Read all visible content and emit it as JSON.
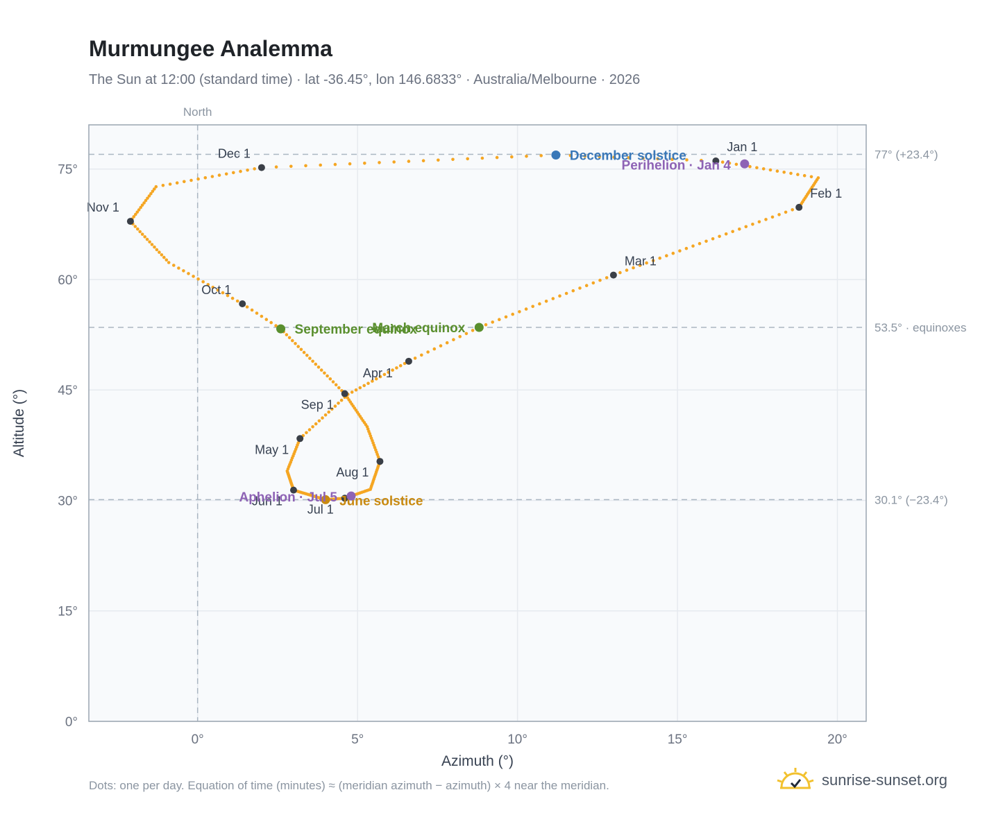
{
  "title": "Murmungee Analemma",
  "subtitle": "The Sun at 12:00 (standard time) · lat -36.45°, lon 146.6833° · Australia/Melbourne · 2026",
  "footnote": "Dots: one per day. Equation of time (minutes) ≈ (meridian azimuth − azimuth) × 4 near the meridian.",
  "brand": {
    "name": "sunrise-sunset.org",
    "icon": "sun-check-icon"
  },
  "colors": {
    "curve": "#f5a623",
    "month_marker": "#3a3f47",
    "equinox": "#5a8f2e",
    "december_solstice": "#3a78b8",
    "june_solstice": "#c98a10",
    "apsis": "#8e63b5",
    "plot_bg": "#f8fafc",
    "grid": "#e6eaef",
    "reference": "#aab6c2"
  },
  "chart_data": {
    "type": "scatter",
    "xlabel": "Azimuth (°)",
    "ylabel": "Altitude (°)",
    "xlim": [
      -3.4,
      20.9
    ],
    "ylim": [
      0,
      81
    ],
    "x_ticks": [
      {
        "v": 0,
        "label": "0°"
      },
      {
        "v": 5,
        "label": "5°"
      },
      {
        "v": 10,
        "label": "10°"
      },
      {
        "v": 15,
        "label": "15°"
      },
      {
        "v": 20,
        "label": "20°"
      }
    ],
    "y_ticks": [
      {
        "v": 0,
        "label": "0°"
      },
      {
        "v": 15,
        "label": "15°"
      },
      {
        "v": 30,
        "label": "30°"
      },
      {
        "v": 45,
        "label": "45°"
      },
      {
        "v": 60,
        "label": "60°"
      },
      {
        "v": 75,
        "label": "75°"
      }
    ],
    "grid": true,
    "north_line": {
      "azimuth": 0,
      "label": "North"
    },
    "reference_lines": [
      {
        "altitude": 77.0,
        "label": "77° (+23.4°)"
      },
      {
        "altitude": 53.5,
        "label": "53.5° · equinoxes"
      },
      {
        "altitude": 30.1,
        "label": "30.1° (−23.4°)"
      }
    ],
    "path_points": [
      {
        "day": 1,
        "az": 16.2,
        "alt": 76.1
      },
      {
        "day": 16,
        "az": 19.4,
        "alt": 73.8
      },
      {
        "day": 32,
        "az": 18.8,
        "alt": 69.8
      },
      {
        "day": 60,
        "az": 13.0,
        "alt": 60.6
      },
      {
        "day": 80,
        "az": 8.8,
        "alt": 53.5
      },
      {
        "day": 91,
        "az": 6.6,
        "alt": 48.9
      },
      {
        "day": 106,
        "az": 4.7,
        "alt": 44.4
      },
      {
        "day": 121,
        "az": 3.2,
        "alt": 38.4
      },
      {
        "day": 136,
        "az": 2.8,
        "alt": 34.0
      },
      {
        "day": 152,
        "az": 3.0,
        "alt": 31.4
      },
      {
        "day": 172,
        "az": 4.0,
        "alt": 30.1
      },
      {
        "day": 182,
        "az": 4.6,
        "alt": 30.3
      },
      {
        "day": 197,
        "az": 5.4,
        "alt": 31.5
      },
      {
        "day": 213,
        "az": 5.7,
        "alt": 35.3
      },
      {
        "day": 228,
        "az": 5.3,
        "alt": 40.0
      },
      {
        "day": 244,
        "az": 4.6,
        "alt": 44.5
      },
      {
        "day": 266,
        "az": 2.6,
        "alt": 53.3
      },
      {
        "day": 274,
        "az": 1.4,
        "alt": 56.7
      },
      {
        "day": 289,
        "az": -0.9,
        "alt": 62.3
      },
      {
        "day": 305,
        "az": -2.1,
        "alt": 67.9
      },
      {
        "day": 320,
        "az": -1.3,
        "alt": 72.6
      },
      {
        "day": 335,
        "az": 2.0,
        "alt": 75.2
      },
      {
        "day": 355,
        "az": 11.2,
        "alt": 76.9
      },
      {
        "day": 366,
        "az": 16.2,
        "alt": 76.1
      }
    ],
    "months": [
      {
        "label": "Jan 1",
        "az": 16.2,
        "alt": 76.1,
        "dx": 16,
        "dy": -14,
        "anchor": "start"
      },
      {
        "label": "Feb 1",
        "az": 18.8,
        "alt": 69.8,
        "dx": 16,
        "dy": -14,
        "anchor": "start"
      },
      {
        "label": "Mar 1",
        "az": 13.0,
        "alt": 60.6,
        "dx": 16,
        "dy": -14,
        "anchor": "start"
      },
      {
        "label": "Apr 1",
        "az": 6.6,
        "alt": 48.9,
        "dx": -66,
        "dy": 23,
        "anchor": "start"
      },
      {
        "label": "May 1",
        "az": 3.2,
        "alt": 38.4,
        "dx": -16,
        "dy": 22,
        "anchor": "end"
      },
      {
        "label": "Jun 1",
        "az": 3.0,
        "alt": 31.4,
        "dx": -16,
        "dy": 22,
        "anchor": "end"
      },
      {
        "label": "Jul 1",
        "az": 4.6,
        "alt": 30.3,
        "dx": -16,
        "dy": 22,
        "anchor": "end"
      },
      {
        "label": "Aug 1",
        "az": 5.7,
        "alt": 35.3,
        "dx": -16,
        "dy": 22,
        "anchor": "end"
      },
      {
        "label": "Sep 1",
        "az": 4.6,
        "alt": 44.5,
        "dx": -16,
        "dy": 22,
        "anchor": "end"
      },
      {
        "label": "Oct 1",
        "az": 1.4,
        "alt": 56.7,
        "dx": -16,
        "dy": -14,
        "anchor": "end"
      },
      {
        "label": "Nov 1",
        "az": -2.1,
        "alt": 67.9,
        "dx": -16,
        "dy": -14,
        "anchor": "end"
      },
      {
        "label": "Dec 1",
        "az": 2.0,
        "alt": 75.2,
        "dx": -16,
        "dy": -14,
        "anchor": "end"
      }
    ],
    "events": [
      {
        "label": "December solstice",
        "az": 11.2,
        "alt": 76.9,
        "color": "#3a78b8",
        "dx": 20,
        "dy": 7,
        "anchor": "start"
      },
      {
        "label": "Perihelion · Jan 4",
        "az": 17.1,
        "alt": 75.7,
        "color": "#8e63b5",
        "dx": -20,
        "dy": 8,
        "anchor": "end"
      },
      {
        "label": "March equinox",
        "az": 8.8,
        "alt": 53.5,
        "color": "#5a8f2e",
        "dx": -20,
        "dy": 7,
        "anchor": "end"
      },
      {
        "label": "September equinox",
        "az": 2.6,
        "alt": 53.3,
        "color": "#5a8f2e",
        "dx": 20,
        "dy": 7,
        "anchor": "start"
      },
      {
        "label": "June solstice",
        "az": 4.0,
        "alt": 30.1,
        "color": "#c98a10",
        "dx": 20,
        "dy": 8,
        "anchor": "start"
      },
      {
        "label": "Aphelion · Jul 5",
        "az": 4.8,
        "alt": 30.6,
        "color": "#8e63b5",
        "dx": -20,
        "dy": 8,
        "anchor": "end"
      }
    ]
  }
}
